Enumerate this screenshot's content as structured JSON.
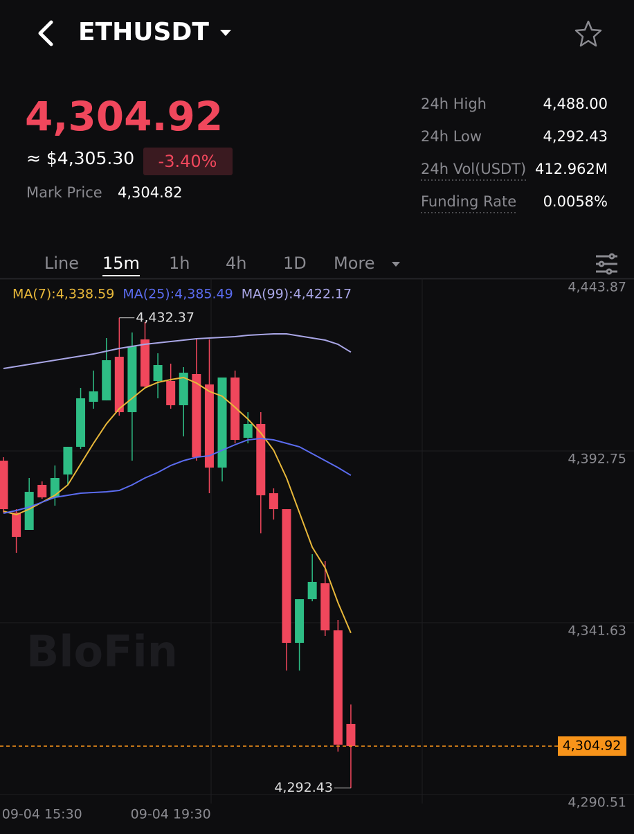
{
  "header": {
    "symbol": "ETHUSDT"
  },
  "price": {
    "last": "4,304.92",
    "usd": "≈ $4,305.30",
    "change": "-3.40%",
    "mark_label": "Mark Price",
    "mark_value": "4,304.82"
  },
  "stats": [
    {
      "label": "24h High",
      "value": "4,488.00"
    },
    {
      "label": "24h Low",
      "value": "4,292.43"
    },
    {
      "label": "24h Vol(USDT)",
      "value": "412.962M"
    },
    {
      "label": "Funding Rate",
      "value": "0.0058%"
    }
  ],
  "tabs": [
    "Line",
    "15m",
    "1h",
    "4h",
    "1D",
    "More"
  ],
  "chart_data": {
    "type": "candlestick",
    "watermark": "BloFin",
    "categories": [
      null,
      null,
      null,
      "09-04 15:30",
      null,
      null,
      null,
      null,
      null,
      null,
      null,
      null,
      null,
      "09-04 19:30",
      null,
      null,
      null,
      null,
      null,
      null,
      null,
      null,
      null,
      null,
      null,
      null,
      null,
      null
    ],
    "open": [
      4389.86,
      4374.4,
      4369.25,
      4382.65,
      4378.93,
      4385.74,
      4393.98,
      4407.38,
      4407.79,
      4420.78,
      4404.29,
      4425.94,
      4413.57,
      4413.57,
      4406.35,
      4415.63,
      4412.54,
      4387.8,
      4414.6,
      4396.66,
      4400.79,
      4380.17,
      4375.43,
      4335.64,
      4348.63,
      4353.37,
      4339.36,
      4311.53
    ],
    "high": [
      4390.89,
      4375.43,
      4384.71,
      4383.68,
      4388.42,
      4393.98,
      4411.51,
      4416.66,
      4426.35,
      4432.37,
      4428.0,
      4431.09,
      4421.81,
      4418.72,
      4417.69,
      4425.94,
      4425.94,
      4414.6,
      4416.66,
      4404.29,
      4404.29,
      4381.61,
      4375.43,
      4348.63,
      4362.03,
      4359.97,
      4342.45,
      4317.3
    ],
    "low": [
      4374.4,
      4362.44,
      4369.25,
      4378.52,
      4376.46,
      4382.65,
      4393.36,
      4405.32,
      4407.79,
      4403.26,
      4389.86,
      4411.51,
      4408.41,
      4405.32,
      4397.08,
      4389.86,
      4380.17,
      4383.68,
      4395.01,
      4395.01,
      4368.22,
      4372.34,
      4327.4,
      4327.4,
      4348.01,
      4337.71,
      4303.28,
      4292.43
    ],
    "close": [
      4375.43,
      4367.18,
      4380.58,
      4378.93,
      4384.71,
      4393.98,
      4408.41,
      4410.47,
      4419.75,
      4404.29,
      4423.87,
      4411.92,
      4418.31,
      4406.35,
      4416.04,
      4390.89,
      4387.8,
      4414.6,
      4396.04,
      4400.79,
      4379.55,
      4375.43,
      4335.64,
      4348.63,
      4353.79,
      4339.36,
      4305.34,
      4304.92
    ],
    "up_color": "#2ebd85",
    "down_color": "#f0475c",
    "series": [
      {
        "name": "MA(7):4,338.59",
        "color": "#e8b83a",
        "values": [
          4374.81,
          4373.78,
          4375.43,
          4377.49,
          4379.55,
          4382.65,
          4388.83,
          4395.01,
          4400.79,
          4405.32,
          4408.41,
          4411.51,
          4413.16,
          4413.98,
          4414.6,
          4412.95,
          4410.47,
          4409.03,
          4405.73,
          4402.23,
          4398.11,
          4392.95,
          4384.71,
          4374.4,
          4364.09,
          4357.91,
          4347.6,
          4338.59
        ]
      },
      {
        "name": "MA(25):4,385.49",
        "color": "#5b6cf0",
        "values": [
          4374.19,
          4375.02,
          4376.05,
          4377.49,
          4378.94,
          4379.55,
          4380.17,
          4380.38,
          4380.59,
          4381.0,
          4382.65,
          4384.71,
          4386.36,
          4388.42,
          4389.86,
          4390.89,
          4391.3,
          4392.95,
          4394.6,
          4396.04,
          4396.46,
          4396.04,
          4395.01,
          4393.98,
          4391.92,
          4389.86,
          4387.8,
          4385.49
        ]
      },
      {
        "name": "MA(99):4,422.17",
        "color": "#a9a6e6",
        "values": [
          4417.28,
          4417.9,
          4418.51,
          4419.13,
          4419.75,
          4420.37,
          4420.99,
          4421.61,
          4422.43,
          4423.26,
          4423.87,
          4424.49,
          4424.9,
          4425.32,
          4425.73,
          4426.14,
          4426.35,
          4426.55,
          4426.76,
          4427.17,
          4427.38,
          4427.58,
          4427.58,
          4426.97,
          4426.35,
          4425.73,
          4424.49,
          4422.17
        ]
      }
    ],
    "ylim": [
      4287.83,
      4443.87
    ],
    "yticks": [
      {
        "value": 4443.87,
        "label": "4,443.87"
      },
      {
        "value": 4392.75,
        "label": "4,392.75"
      },
      {
        "value": 4341.63,
        "label": "4,341.63"
      },
      {
        "value": 4290.51,
        "label": "4,290.51"
      }
    ],
    "grid": true,
    "last_price": {
      "value": 4304.92,
      "label": "4,304.92",
      "color": "#f7931a"
    },
    "high_marker": {
      "value": 4432.37,
      "label": "4,432.37"
    },
    "low_marker": {
      "value": 4292.43,
      "label": "4,292.43"
    }
  }
}
